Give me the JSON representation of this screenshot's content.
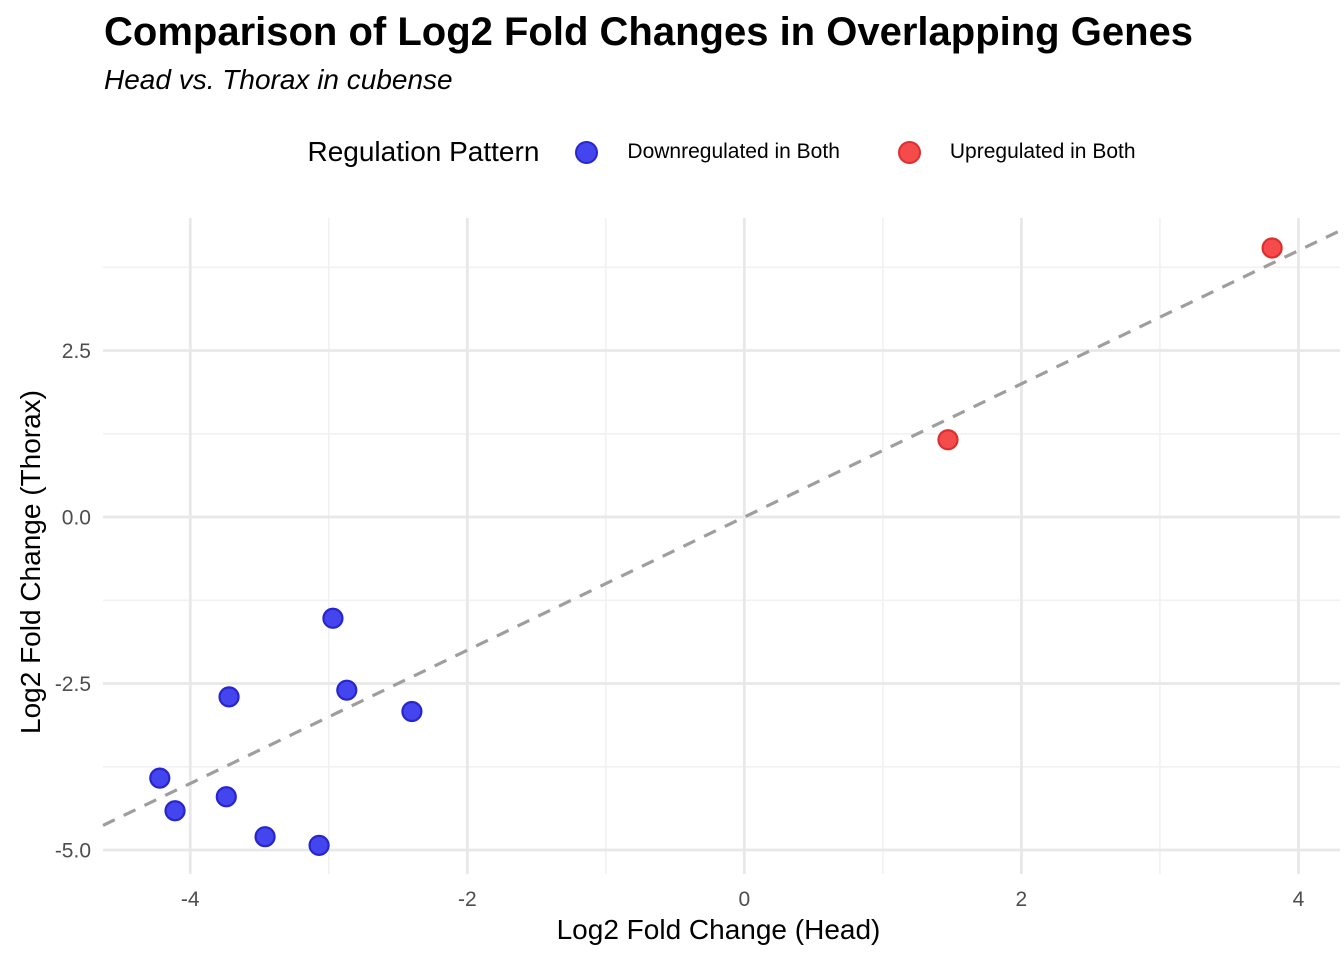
{
  "header": {
    "title": "Comparison of Log2 Fold Changes in Overlapping Genes",
    "subtitle": "Head vs. Thorax in cubense"
  },
  "legend": {
    "title": "Regulation Pattern"
  },
  "chart_data": {
    "type": "scatter",
    "title": "Comparison of Log2 Fold Changes in Overlapping Genes",
    "subtitle": "Head vs. Thorax in cubense",
    "xlabel": "Log2 Fold Change (Head)",
    "ylabel": "Log2 Fold Change (Thorax)",
    "xlim": [
      -4.63,
      4.3
    ],
    "ylim": [
      -5.36,
      4.49
    ],
    "x_major_ticks": [
      {
        "v": -4,
        "label": "-4"
      },
      {
        "v": -2,
        "label": "-2"
      },
      {
        "v": 0,
        "label": "0"
      },
      {
        "v": 2,
        "label": "2"
      },
      {
        "v": 4,
        "label": "4"
      }
    ],
    "y_major_ticks": [
      {
        "v": 2.5,
        "label": "2.5"
      },
      {
        "v": 0.0,
        "label": "0.0"
      },
      {
        "v": -2.5,
        "label": "-2.5"
      },
      {
        "v": -5.0,
        "label": "-5.0"
      }
    ],
    "x_minor_ticks": [
      -3,
      -1,
      1,
      3
    ],
    "y_minor_ticks": [
      3.75,
      1.25,
      -1.25,
      -3.75
    ],
    "grid": "major and minor, light gray, no panel border",
    "legend_position": "top",
    "reference_line": {
      "kind": "identity y = x",
      "style": "dashed",
      "color": "#9e9e9e"
    },
    "series": [
      {
        "name": "Downregulated in Both",
        "marker_fill": "#4545f0",
        "marker_stroke": "#2626cf",
        "points": [
          [
            -2.97,
            -1.52
          ],
          [
            -3.72,
            -2.7
          ],
          [
            -2.87,
            -2.6
          ],
          [
            -2.4,
            -2.92
          ],
          [
            -4.22,
            -3.92
          ],
          [
            -3.74,
            -4.2
          ],
          [
            -4.11,
            -4.41
          ],
          [
            -3.46,
            -4.8
          ],
          [
            -3.07,
            -4.93
          ]
        ]
      },
      {
        "name": "Upregulated in Both",
        "marker_fill": "#f64b4b",
        "marker_stroke": "#dc2f2f",
        "points": [
          [
            1.47,
            1.16
          ],
          [
            3.81,
            4.04
          ]
        ]
      }
    ]
  },
  "style": {
    "grid_major_color": "#e8e8e8",
    "grid_minor_color": "#f1f1f1",
    "tick_label_color": "#4d4d4d",
    "axis_title_color": "#000000"
  }
}
